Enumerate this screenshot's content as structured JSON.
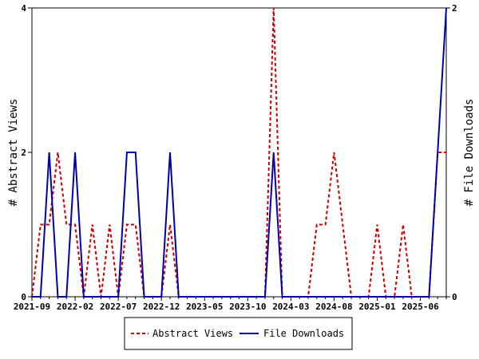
{
  "chart_data": {
    "type": "line",
    "x_ticks": [
      "2021-09",
      "2022-02",
      "2022-07",
      "2022-12",
      "2023-05",
      "2023-10",
      "2024-03",
      "2024-08",
      "2025-01",
      "2025-06"
    ],
    "x_range": [
      0,
      48
    ],
    "left_axis": {
      "label": "# Abstract Views",
      "ticks": [
        "0",
        "2",
        "4"
      ],
      "range": [
        0,
        4
      ]
    },
    "right_axis": {
      "label": "# File Downloads",
      "ticks": [
        "0",
        "2"
      ],
      "range": [
        0,
        2
      ]
    },
    "series": [
      {
        "name": "Abstract Views",
        "axis": "left",
        "color": "#cc0000",
        "style": "dashed",
        "values": [
          0,
          1,
          1,
          2,
          1,
          1,
          0,
          1,
          0,
          1,
          0,
          1,
          1,
          0,
          0,
          0,
          1,
          0,
          0,
          0,
          0,
          0,
          0,
          0,
          0,
          0,
          0,
          0,
          4,
          0,
          0,
          0,
          0,
          1,
          1,
          2,
          1,
          0,
          0,
          0,
          1,
          0,
          0,
          1,
          0,
          0,
          0,
          2,
          2
        ]
      },
      {
        "name": "File Downloads",
        "axis": "right",
        "color": "#0000aa",
        "style": "solid",
        "values": [
          0,
          0,
          1,
          0,
          0,
          1,
          0,
          0,
          0,
          0,
          0,
          1,
          1,
          0,
          0,
          0,
          1,
          0,
          0,
          0,
          0,
          0,
          0,
          0,
          0,
          0,
          0,
          0,
          1,
          0,
          0,
          0,
          0,
          0,
          0,
          0,
          0,
          0,
          0,
          0,
          0,
          0,
          0,
          0,
          0,
          0,
          0,
          1,
          2
        ]
      }
    ],
    "legend": {
      "placement": "bottom",
      "items": [
        "Abstract Views",
        "File Downloads"
      ]
    },
    "grid": false
  }
}
